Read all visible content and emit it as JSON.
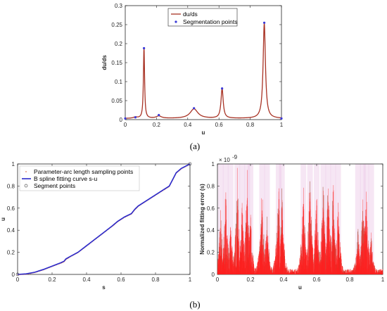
{
  "panel_labels": {
    "a": "(a)",
    "b": "(b)"
  },
  "colors": {
    "curve": "#a83224",
    "points": "#3a3ad8",
    "spline": "#2b2bcc",
    "sampling": "#e07b5a",
    "error_red": "#ff2020",
    "error_dark": "#a04a30",
    "error_glow": "#ebc8e6"
  },
  "chart_data": [
    {
      "id": "a",
      "type": "line",
      "xlabel": "u",
      "ylabel": "du/ds",
      "xlim": [
        0,
        1
      ],
      "ylim": [
        0,
        0.3
      ],
      "xticks": [
        "0",
        "0.2",
        "0.4",
        "0.6",
        "0.8",
        "1"
      ],
      "yticks": [
        "0",
        "0.05",
        "0.1",
        "0.15",
        "0.2",
        "0.25",
        "0.3"
      ],
      "legend_position": "top-right",
      "legend": [
        "du/ds",
        "Segmentation points"
      ],
      "peaks": [
        {
          "u": 0.065,
          "h": 0.003,
          "w": 0.015
        },
        {
          "u": 0.12,
          "h": 0.186,
          "w": 0.0045
        },
        {
          "u": 0.215,
          "h": 0.006,
          "w": 0.02
        },
        {
          "u": 0.44,
          "h": 0.025,
          "w": 0.03
        },
        {
          "u": 0.62,
          "h": 0.078,
          "w": 0.0085
        },
        {
          "u": 0.89,
          "h": 0.25,
          "w": 0.009
        }
      ],
      "baseline": 0.003,
      "segmentation_points": [
        {
          "u": 0,
          "v": 0.003
        },
        {
          "u": 0.065,
          "v": 0.006
        },
        {
          "u": 0.12,
          "v": 0.188
        },
        {
          "u": 0.215,
          "v": 0.012
        },
        {
          "u": 0.44,
          "v": 0.03
        },
        {
          "u": 0.62,
          "v": 0.082
        },
        {
          "u": 0.89,
          "v": 0.255
        },
        {
          "u": 1,
          "v": 0.003
        }
      ]
    },
    {
      "id": "b-left",
      "type": "line",
      "xlabel": "s",
      "ylabel": "u",
      "xlim": [
        0,
        1
      ],
      "ylim": [
        0,
        1
      ],
      "xticks": [
        "0",
        "0.2",
        "0.4",
        "0.6",
        "0.8",
        "1"
      ],
      "yticks": [
        "0",
        "0.2",
        "0.4",
        "0.6",
        "0.8",
        "1"
      ],
      "legend_position": "top-left",
      "legend": [
        "Parameter-arc length sampling points",
        "B spline fitting curve s-u",
        "Segment points"
      ],
      "curve": [
        [
          0,
          0
        ],
        [
          0.05,
          0.005
        ],
        [
          0.1,
          0.02
        ],
        [
          0.15,
          0.045
        ],
        [
          0.2,
          0.075
        ],
        [
          0.25,
          0.105
        ],
        [
          0.27,
          0.12
        ],
        [
          0.28,
          0.14
        ],
        [
          0.3,
          0.158
        ],
        [
          0.35,
          0.2
        ],
        [
          0.4,
          0.26
        ],
        [
          0.45,
          0.32
        ],
        [
          0.5,
          0.38
        ],
        [
          0.55,
          0.44
        ],
        [
          0.58,
          0.48
        ],
        [
          0.62,
          0.52
        ],
        [
          0.66,
          0.55
        ],
        [
          0.68,
          0.59
        ],
        [
          0.7,
          0.62
        ],
        [
          0.75,
          0.67
        ],
        [
          0.8,
          0.72
        ],
        [
          0.85,
          0.77
        ],
        [
          0.88,
          0.8
        ],
        [
          0.9,
          0.86
        ],
        [
          0.92,
          0.92
        ],
        [
          0.95,
          0.96
        ],
        [
          1,
          1
        ]
      ],
      "segment_points": [
        [
          0,
          0
        ],
        [
          1,
          1
        ]
      ]
    },
    {
      "id": "b-right",
      "type": "line",
      "xlabel": "u",
      "ylabel": "Normalized fitting error (s)",
      "exponent_label": "× 10",
      "exponent": "-9",
      "xlim": [
        0,
        1
      ],
      "ylim": [
        0,
        1
      ],
      "xticks": [
        "0",
        "0.2",
        "0.4",
        "0.6",
        "0.8",
        "1"
      ],
      "yticks": [
        "0",
        "0.2",
        "0.4",
        "0.6",
        "0.8",
        "1"
      ],
      "spike_u": [
        0.02,
        0.05,
        0.08,
        0.12,
        0.15,
        0.18,
        0.2,
        0.27,
        0.3,
        0.37,
        0.39,
        0.52,
        0.56,
        0.6,
        0.64,
        0.67,
        0.7,
        0.73,
        0.85,
        0.88,
        0.9,
        0.93
      ],
      "spike_h": [
        0.62,
        0.85,
        0.5,
        0.97,
        0.7,
        0.99,
        0.6,
        0.96,
        0.55,
        0.95,
        0.8,
        0.87,
        0.98,
        0.82,
        0.9,
        0.97,
        0.9,
        0.7,
        0.45,
        0.78,
        0.85,
        0.4
      ]
    }
  ]
}
